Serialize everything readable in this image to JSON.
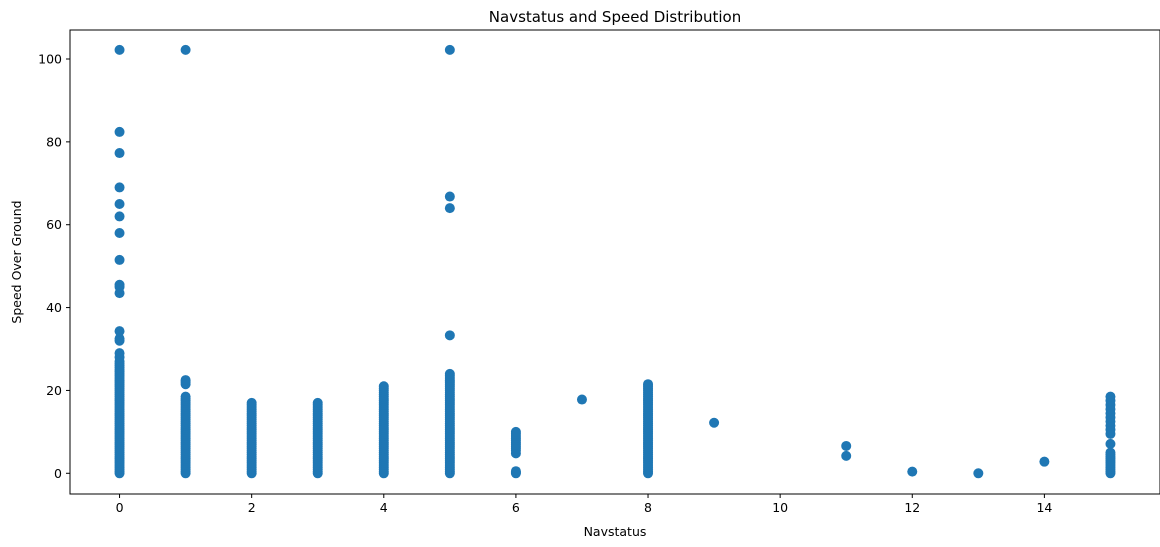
{
  "chart_data": {
    "type": "scatter",
    "title": "Navstatus and Speed Distribution",
    "xlabel": "Navstatus",
    "ylabel": "Speed Over Ground",
    "xlim": [
      -0.75,
      15.75
    ],
    "ylim": [
      -5,
      107
    ],
    "xticks": [
      0,
      2,
      4,
      6,
      8,
      10,
      12,
      14
    ],
    "yticks": [
      0,
      20,
      40,
      60,
      80,
      100
    ],
    "grid": false,
    "color": "#1f77b4",
    "series": [
      {
        "points": [
          {
            "x": 0,
            "y_range": [
              0,
              26.5
            ],
            "step": 0.5
          },
          {
            "x": 0,
            "y_values": [
              27,
              28,
              29,
              32,
              32.5,
              34.3,
              43.5,
              45,
              45.5,
              51.5,
              58,
              62,
              65,
              69,
              77.3,
              82.4,
              102.2
            ]
          },
          {
            "x": 1,
            "y_range": [
              0,
              18.5
            ],
            "step": 0.5
          },
          {
            "x": 1,
            "y_values": [
              21.5,
              22,
              22.5,
              102.2
            ]
          },
          {
            "x": 2,
            "y_range": [
              0,
              17.3
            ],
            "step": 0.5
          },
          {
            "x": 3,
            "y_range": [
              0,
              17
            ],
            "step": 0.5
          },
          {
            "x": 4,
            "y_range": [
              0,
              21
            ],
            "step": 0.5
          },
          {
            "x": 5,
            "y_range": [
              0,
              24
            ],
            "step": 0.5
          },
          {
            "x": 5,
            "y_values": [
              33.3,
              64,
              66.8,
              102.2
            ]
          },
          {
            "x": 6,
            "y_values": [
              0,
              0.2,
              0.5,
              4.8,
              5.5,
              6,
              6.5,
              7,
              7.5,
              8,
              8.5,
              9,
              9.5,
              10
            ]
          },
          {
            "x": 7,
            "y_values": [
              17.8
            ]
          },
          {
            "x": 8,
            "y_range": [
              0,
              21.5
            ],
            "step": 0.5
          },
          {
            "x": 9,
            "y_values": [
              12.2
            ]
          },
          {
            "x": 11,
            "y_values": [
              4.2,
              6.6
            ]
          },
          {
            "x": 12,
            "y_values": [
              0.4
            ]
          },
          {
            "x": 13,
            "y_values": [
              0
            ]
          },
          {
            "x": 14,
            "y_values": [
              2.8
            ]
          },
          {
            "x": 15,
            "y_values": [
              0,
              0.5,
              1,
              1.5,
              2,
              2.5,
              3,
              3.5,
              4,
              4.5,
              5,
              7.1,
              9.5,
              10.5,
              11.5,
              12.5,
              13.5,
              14.5,
              15.5,
              16.5,
              17.5,
              18.5
            ]
          }
        ]
      }
    ]
  }
}
